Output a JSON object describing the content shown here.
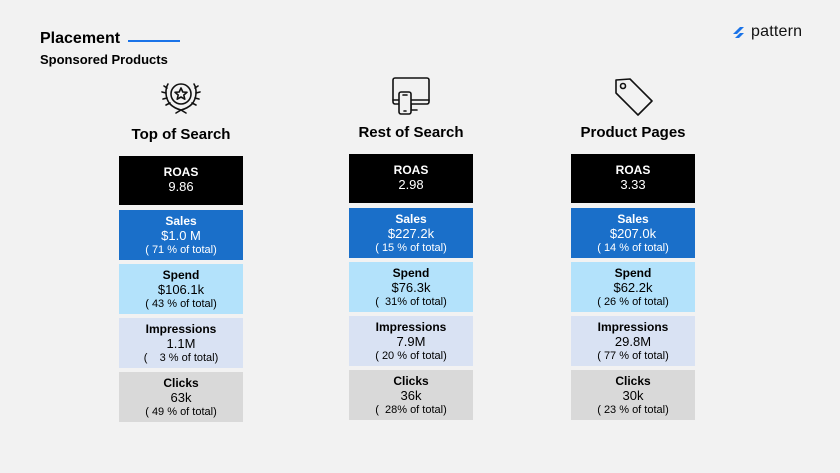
{
  "header": {
    "title": "Placement",
    "subtitle": "Sponsored Products"
  },
  "logo": {
    "text": "pattern",
    "color": "#1a73e8"
  },
  "columns": [
    {
      "heading": "Top of Search",
      "icon": "laurel-star-icon",
      "roas": {
        "label": "ROAS",
        "value": "9.86"
      },
      "sales": {
        "label": "Sales",
        "value": "$1.0 M",
        "share": "( 71 % of total)"
      },
      "spend": {
        "label": "Spend",
        "value": "$106.1k",
        "share": "( 43 % of total)"
      },
      "impressions": {
        "label": "Impressions",
        "value": "1.1M",
        "share": "(    3 % of total)"
      },
      "clicks": {
        "label": "Clicks",
        "value": "63k",
        "share": "( 49 % of total)"
      }
    },
    {
      "heading": "Rest of Search",
      "icon": "devices-icon",
      "roas": {
        "label": "ROAS",
        "value": "2.98"
      },
      "sales": {
        "label": "Sales",
        "value": "$227.2k",
        "share": "( 15 % of total)"
      },
      "spend": {
        "label": "Spend",
        "value": "$76.3k",
        "share": "(  31% of total)"
      },
      "impressions": {
        "label": "Impressions",
        "value": "7.9M",
        "share": "( 20 % of total)"
      },
      "clicks": {
        "label": "Clicks",
        "value": "36k",
        "share": "(  28% of total)"
      }
    },
    {
      "heading": "Product Pages",
      "icon": "price-tag-icon",
      "roas": {
        "label": "ROAS",
        "value": "3.33"
      },
      "sales": {
        "label": "Sales",
        "value": "$207.0k",
        "share": "( 14 % of total)"
      },
      "spend": {
        "label": "Spend",
        "value": "$62.2k",
        "share": "( 26 % of total)"
      },
      "impressions": {
        "label": "Impressions",
        "value": "29.8M",
        "share": "( 77 % of total)"
      },
      "clicks": {
        "label": "Clicks",
        "value": "30k",
        "share": "( 23 % of total)"
      }
    }
  ]
}
